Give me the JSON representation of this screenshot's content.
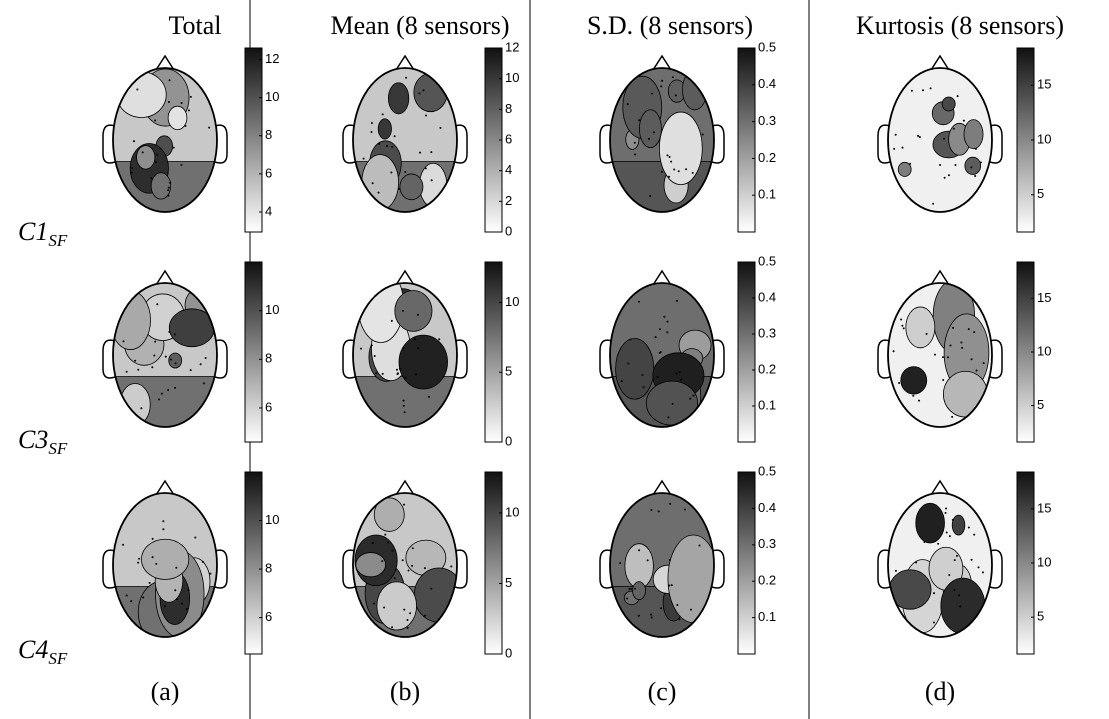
{
  "columns": [
    {
      "title": "Total",
      "caption": "(a)",
      "colorbars": [
        {
          "lim": [
            2.95,
            12.6
          ],
          "ticks": [
            4,
            6,
            8,
            10,
            12
          ]
        },
        {
          "lim": [
            4.6,
            12
          ],
          "ticks": [
            6,
            8,
            10
          ]
        },
        {
          "lim": [
            4.5,
            12
          ],
          "ticks": [
            6,
            8,
            10
          ]
        }
      ]
    },
    {
      "title": "Mean (8 sensors)",
      "caption": "(b)",
      "colorbars": [
        {
          "lim": [
            0,
            12
          ],
          "ticks": [
            0,
            2,
            4,
            6,
            8,
            10,
            12
          ]
        },
        {
          "lim": [
            0,
            12.9
          ],
          "ticks": [
            0,
            5,
            10
          ]
        },
        {
          "lim": [
            0,
            12.9
          ],
          "ticks": [
            0,
            5,
            10
          ]
        }
      ]
    },
    {
      "title": "S.D. (8 sensors)",
      "caption": "(c)",
      "colorbars": [
        {
          "lim": [
            0,
            0.5
          ],
          "ticks": [
            0.1,
            0.2,
            0.3,
            0.4,
            0.5
          ]
        },
        {
          "lim": [
            0,
            0.5
          ],
          "ticks": [
            0.1,
            0.2,
            0.3,
            0.4,
            0.5
          ]
        },
        {
          "lim": [
            0,
            0.5
          ],
          "ticks": [
            0.1,
            0.2,
            0.3,
            0.4,
            0.5
          ]
        }
      ]
    },
    {
      "title": "Kurtosis (8 sensors)",
      "caption": "(d)",
      "colorbars": [
        {
          "lim": [
            1.6,
            18.4
          ],
          "ticks": [
            5,
            10,
            15
          ]
        },
        {
          "lim": [
            1.6,
            18.4
          ],
          "ticks": [
            5,
            10,
            15
          ]
        },
        {
          "lim": [
            1.6,
            18.4
          ],
          "ticks": [
            5,
            10,
            15
          ]
        }
      ]
    }
  ],
  "row_labels": [
    {
      "main": "C1",
      "sub": "SF"
    },
    {
      "main": "C3",
      "sub": "SF"
    },
    {
      "main": "C4",
      "sub": "SF"
    }
  ]
}
